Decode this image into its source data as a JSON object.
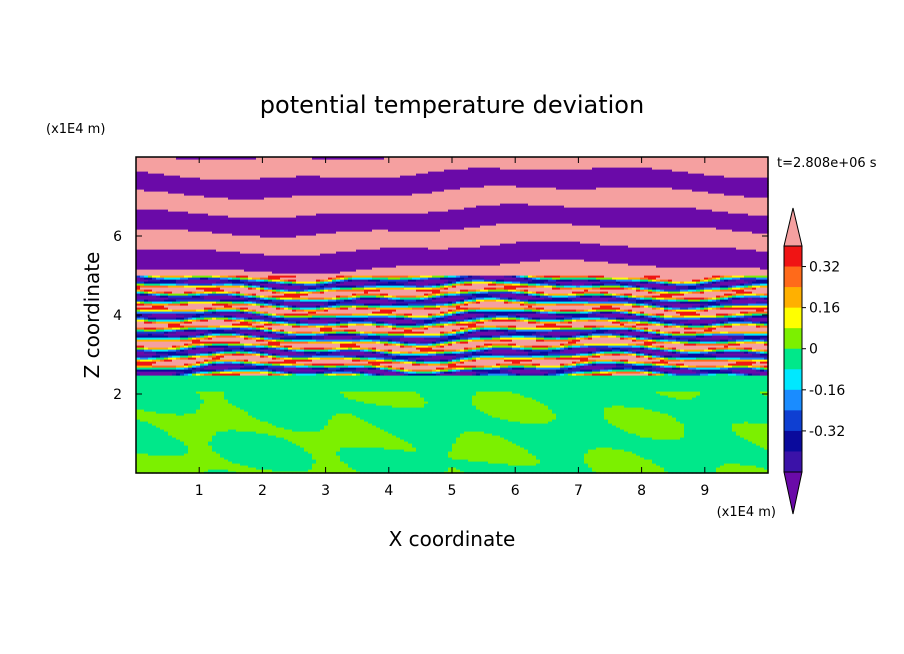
{
  "chart_data": {
    "type": "heatmap",
    "title": "potential temperature deviation",
    "time_label": "t=2.808e+06 s",
    "xlabel": "X coordinate",
    "ylabel": "Z coordinate",
    "x_unit": "(x1E4 m)",
    "y_unit": "(x1E4 m)",
    "xlim": [
      0,
      10
    ],
    "ylim": [
      0,
      8
    ],
    "x_ticks": [
      "1",
      "2",
      "3",
      "4",
      "5",
      "6",
      "7",
      "8",
      "9"
    ],
    "y_ticks": [
      "2",
      "4",
      "6"
    ],
    "colorbar": {
      "levels": [
        -0.48,
        -0.4,
        -0.32,
        -0.24,
        -0.16,
        -0.08,
        0,
        0.08,
        0.16,
        0.24,
        0.32,
        0.4
      ],
      "colors": [
        "#6a0aa8",
        "#3b12a8",
        "#0a0a9c",
        "#0e3fd2",
        "#1a8cff",
        "#00e8ff",
        "#00e88a",
        "#7cf000",
        "#ffff00",
        "#ffb000",
        "#ff6a1a",
        "#f01414",
        "#f5a0a0"
      ],
      "tick_labels": [
        "0.32",
        "0.16",
        "0",
        "-0.16",
        "-0.32"
      ],
      "extend": "both"
    }
  }
}
